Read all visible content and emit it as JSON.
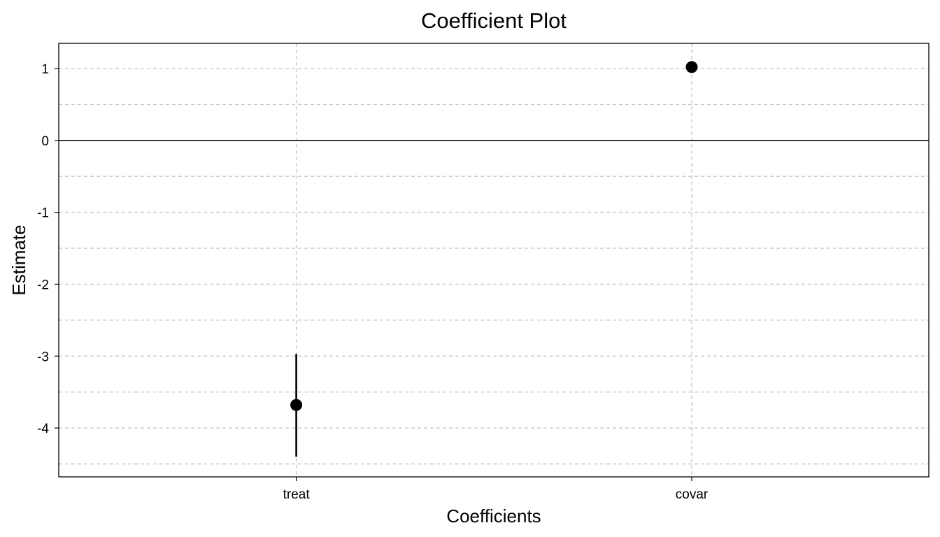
{
  "chart_data": {
    "type": "scatter",
    "title": "Coefficient Plot",
    "xlabel": "Coefficients",
    "ylabel": "Estimate",
    "categories": [
      "treat",
      "covar"
    ],
    "series": [
      {
        "estimate": [
          -3.68,
          1.02
        ],
        "ci_low": [
          -4.4,
          1.02
        ],
        "ci_high": [
          -2.97,
          1.02
        ]
      }
    ],
    "ylim": [
      -4.68,
      1.35
    ],
    "y_ticks": [
      1,
      0,
      -1,
      -2,
      -3,
      -4
    ],
    "y_tick_labels": [
      "1",
      "0",
      "-1",
      "-2",
      "-3",
      "-4"
    ],
    "y_minor_grid": [
      0.5,
      -0.5,
      -1.5,
      -2.5,
      -3.5,
      -4.5
    ],
    "reference_line": 0,
    "grid": true,
    "colors": {
      "point": "#000000",
      "grid": "#c8c8c8",
      "reference": "#000000"
    }
  }
}
